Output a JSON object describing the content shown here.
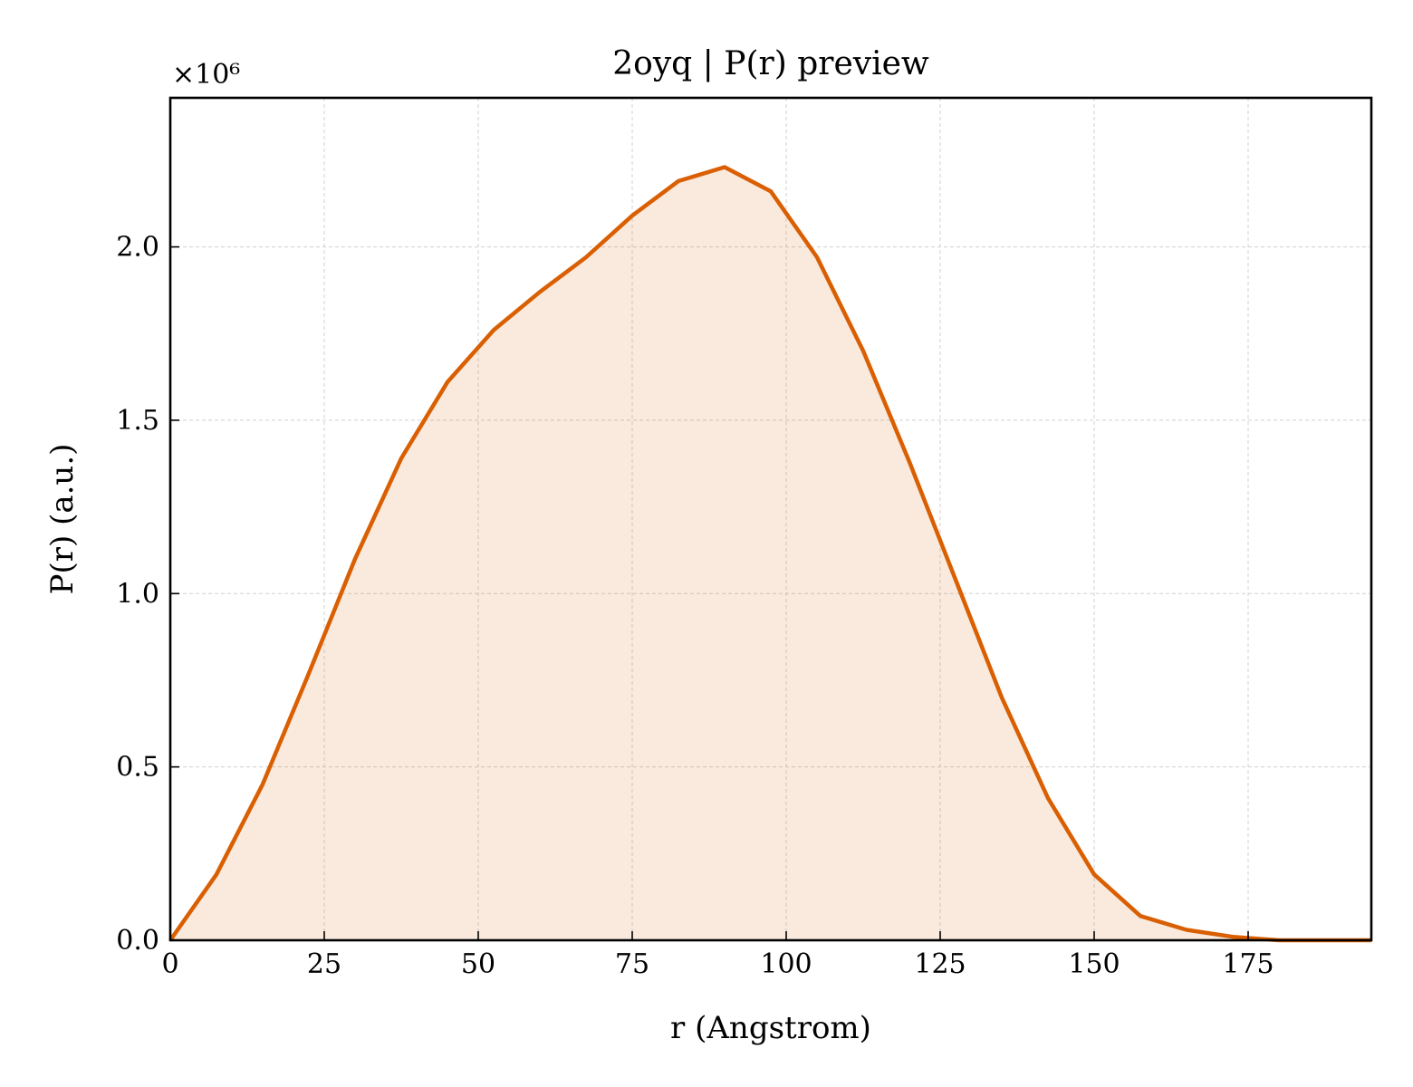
{
  "chart_data": {
    "type": "area",
    "title": "2oyq | P(r) preview",
    "xlabel": "r (Angstrom)",
    "ylabel": "P(r) (a.u.)",
    "y_multiplier_label": "×10⁶",
    "xlim": [
      0,
      195
    ],
    "ylim": [
      0,
      2.43
    ],
    "xticks": [
      0,
      25,
      50,
      75,
      100,
      125,
      150,
      175
    ],
    "xtick_labels": [
      "0",
      "25",
      "50",
      "75",
      "100",
      "125",
      "150",
      "175"
    ],
    "yticks": [
      0.0,
      0.5,
      1.0,
      1.5,
      2.0
    ],
    "ytick_labels": [
      "0.0",
      "0.5",
      "1.0",
      "1.5",
      "2.0"
    ],
    "grid": true,
    "legend": "none",
    "series": [
      {
        "color": "#d95f02",
        "fill_color": "#d95f02",
        "fill_opacity": 0.13,
        "x": [
          0,
          7.5,
          15,
          22.5,
          30,
          37.5,
          45,
          52.5,
          60,
          67.5,
          75,
          82.5,
          90,
          97.5,
          105,
          112.5,
          120,
          127.5,
          135,
          142.5,
          150,
          157.5,
          165,
          172.5,
          180,
          187.5,
          195
        ],
        "y": [
          0.0,
          0.19,
          0.45,
          0.77,
          1.1,
          1.39,
          1.61,
          1.76,
          1.87,
          1.97,
          2.09,
          2.19,
          2.23,
          2.16,
          1.97,
          1.7,
          1.38,
          1.04,
          0.7,
          0.41,
          0.19,
          0.07,
          0.03,
          0.01,
          0.0,
          0.0,
          0.0
        ]
      }
    ]
  }
}
